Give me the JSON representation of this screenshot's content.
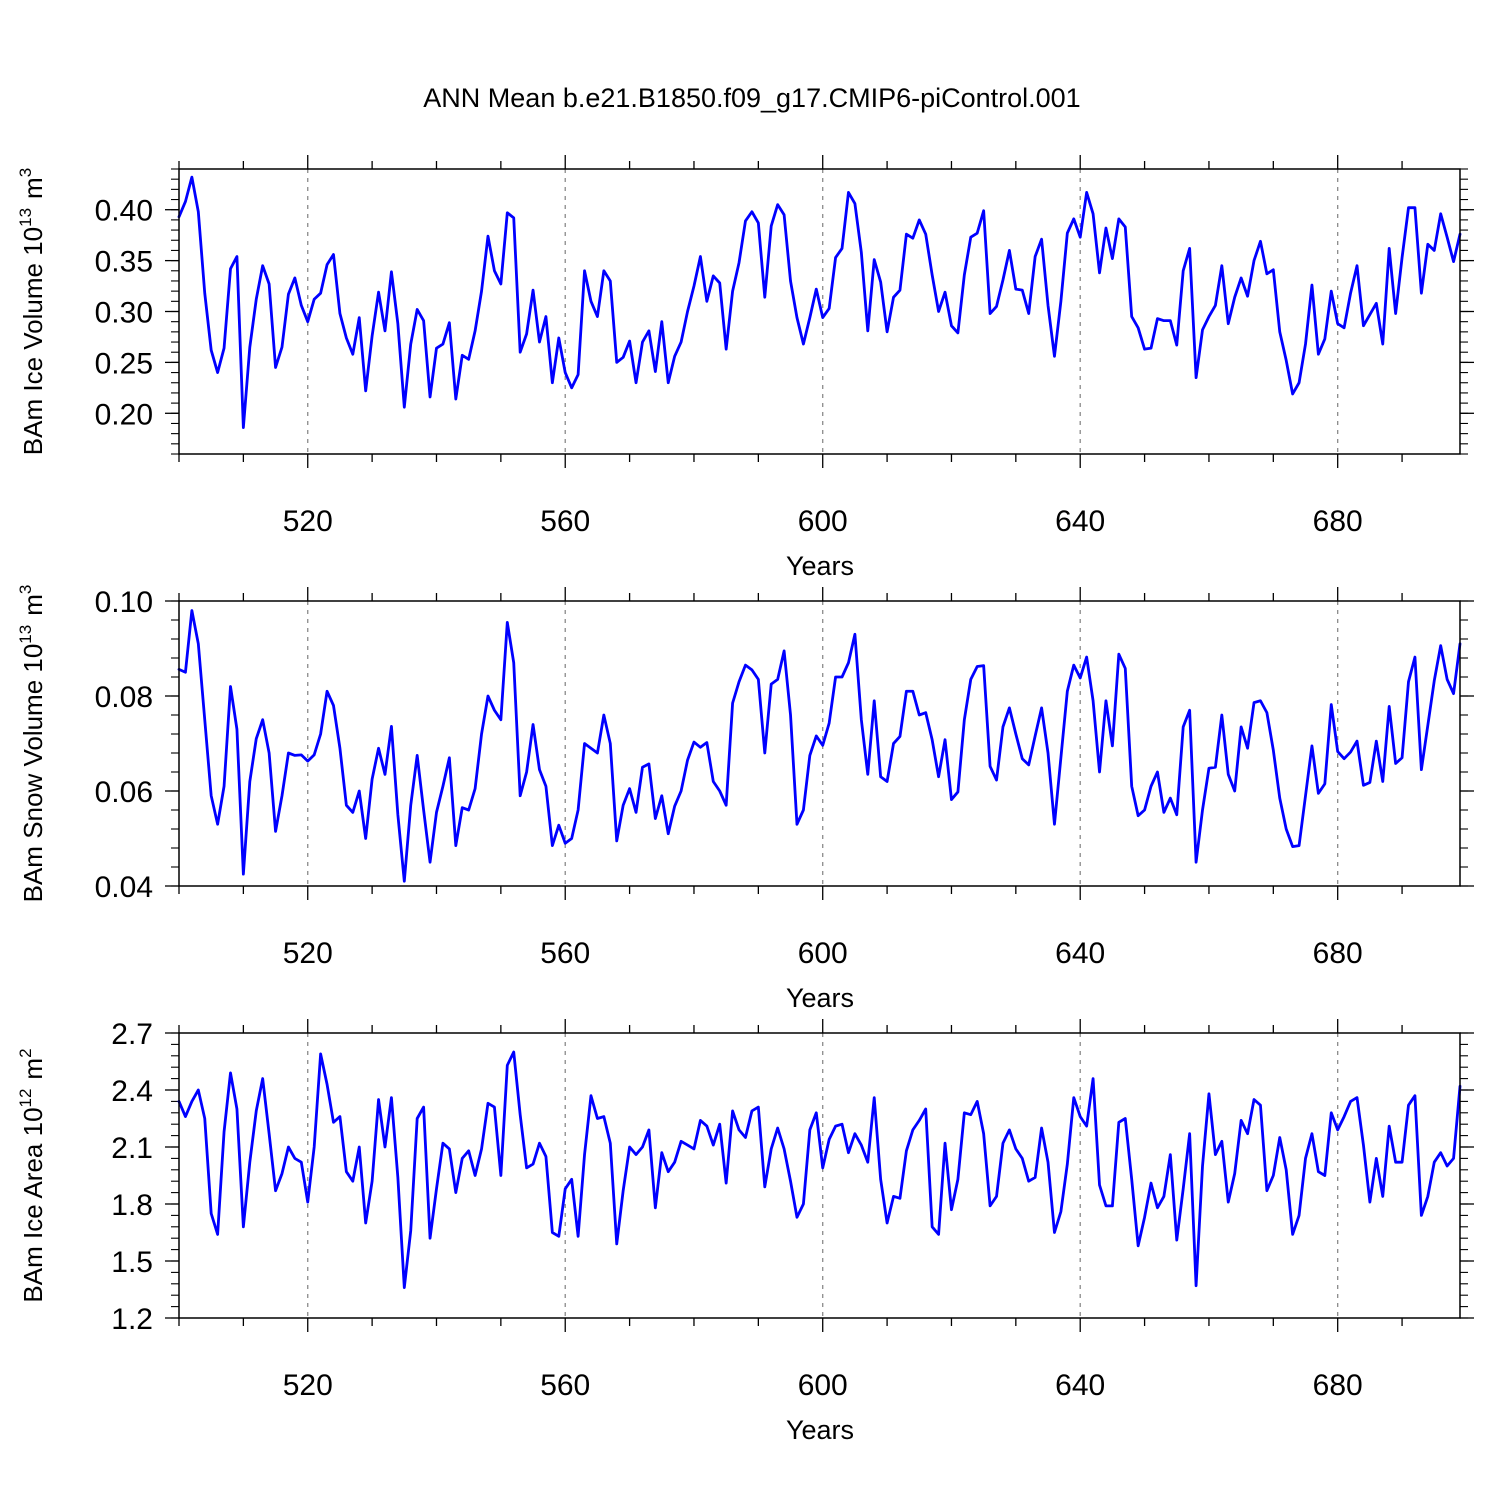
{
  "title": "ANN Mean b.e21.B1850.f09_g17.CMIP6-piControl.001",
  "line_color": "#0000ff",
  "grid_color": "#8a8a8a",
  "chart_data": [
    {
      "type": "line",
      "ylabel": "BAm Ice Volume 10",
      "ylabel_exp": "13",
      "ylabel_unit": "m",
      "ylabel_unit_exp": "3",
      "xlabel": "Years",
      "xlim": [
        500,
        699
      ],
      "ylim": [
        0.16,
        0.44
      ],
      "x_ticks": [
        "520",
        "560",
        "600",
        "640",
        "680"
      ],
      "x_tick_values": [
        520,
        560,
        600,
        640,
        680
      ],
      "y_ticks": [
        "0.20",
        "0.25",
        "0.30",
        "0.35",
        "0.40"
      ],
      "y_tick_values": [
        0.2,
        0.25,
        0.3,
        0.35,
        0.4
      ],
      "y_minor_step": 0.01,
      "grid": "dashed vertical at major x ticks",
      "x_start": 500,
      "x_step": 1,
      "series": [
        {
          "values": [
            0.393,
            0.408,
            0.432,
            0.398,
            0.318,
            0.262,
            0.24,
            0.264,
            0.342,
            0.354,
            0.186,
            0.265,
            0.312,
            0.345,
            0.327,
            0.245,
            0.265,
            0.317,
            0.333,
            0.306,
            0.29,
            0.312,
            0.318,
            0.346,
            0.356,
            0.298,
            0.274,
            0.258,
            0.294,
            0.222,
            0.276,
            0.319,
            0.281,
            0.339,
            0.288,
            0.206,
            0.268,
            0.302,
            0.291,
            0.216,
            0.264,
            0.268,
            0.289,
            0.214,
            0.257,
            0.253,
            0.281,
            0.32,
            0.374,
            0.34,
            0.327,
            0.397,
            0.392,
            0.26,
            0.278,
            0.321,
            0.27,
            0.295,
            0.23,
            0.274,
            0.24,
            0.225,
            0.238,
            0.34,
            0.31,
            0.295,
            0.34,
            0.33,
            0.25,
            0.255,
            0.271,
            0.23,
            0.27,
            0.281,
            0.241,
            0.29,
            0.23,
            0.256,
            0.27,
            0.3,
            0.325,
            0.354,
            0.31,
            0.335,
            0.328,
            0.263,
            0.32,
            0.348,
            0.389,
            0.398,
            0.387,
            0.314,
            0.384,
            0.405,
            0.395,
            0.33,
            0.294,
            0.268,
            0.294,
            0.322,
            0.294,
            0.303,
            0.353,
            0.362,
            0.417,
            0.406,
            0.358,
            0.281,
            0.351,
            0.329,
            0.28,
            0.314,
            0.321,
            0.376,
            0.372,
            0.39,
            0.376,
            0.336,
            0.3,
            0.319,
            0.286,
            0.279,
            0.336,
            0.373,
            0.377,
            0.399,
            0.298,
            0.305,
            0.331,
            0.36,
            0.322,
            0.321,
            0.298,
            0.354,
            0.371,
            0.306,
            0.256,
            0.31,
            0.377,
            0.391,
            0.373,
            0.417,
            0.396,
            0.338,
            0.382,
            0.352,
            0.391,
            0.383,
            0.295,
            0.284,
            0.263,
            0.264,
            0.293,
            0.291,
            0.291,
            0.267,
            0.34,
            0.362,
            0.235,
            0.282,
            0.295,
            0.306,
            0.345,
            0.288,
            0.314,
            0.333,
            0.315,
            0.35,
            0.369,
            0.337,
            0.341,
            0.28,
            0.252,
            0.219,
            0.23,
            0.268,
            0.326,
            0.258,
            0.273,
            0.32,
            0.288,
            0.284,
            0.318,
            0.345,
            0.286,
            0.297,
            0.308,
            0.268,
            0.362,
            0.298,
            0.353,
            0.402,
            0.402,
            0.318,
            0.366,
            0.36,
            0.396,
            0.373,
            0.349,
            0.376
          ]
        }
      ]
    },
    {
      "type": "line",
      "ylabel": "BAm Snow Volume 10",
      "ylabel_exp": "13",
      "ylabel_unit": "m",
      "ylabel_unit_exp": "3",
      "xlabel": "Years",
      "xlim": [
        500,
        699
      ],
      "ylim": [
        0.04,
        0.1
      ],
      "x_ticks": [
        "520",
        "560",
        "600",
        "640",
        "680"
      ],
      "x_tick_values": [
        520,
        560,
        600,
        640,
        680
      ],
      "y_ticks": [
        "0.04",
        "0.06",
        "0.08",
        "0.10"
      ],
      "y_tick_values": [
        0.04,
        0.06,
        0.08,
        0.1
      ],
      "y_minor_step": 0.004,
      "grid": "dashed vertical at major x ticks",
      "x_start": 500,
      "x_step": 1,
      "series": [
        {
          "values": [
            0.0856,
            0.085,
            0.098,
            0.091,
            0.075,
            0.059,
            0.053,
            0.061,
            0.082,
            0.073,
            0.0425,
            0.062,
            0.071,
            0.075,
            0.068,
            0.0515,
            0.059,
            0.068,
            0.0675,
            0.0676,
            0.0663,
            0.0676,
            0.072,
            0.081,
            0.078,
            0.069,
            0.057,
            0.0555,
            0.06,
            0.05,
            0.0625,
            0.069,
            0.0635,
            0.0736,
            0.055,
            0.041,
            0.057,
            0.0675,
            0.056,
            0.045,
            0.0555,
            0.061,
            0.067,
            0.0485,
            0.0565,
            0.056,
            0.0605,
            0.072,
            0.08,
            0.077,
            0.075,
            0.0955,
            0.087,
            0.059,
            0.064,
            0.074,
            0.0645,
            0.061,
            0.0485,
            0.0528,
            0.049,
            0.05,
            0.056,
            0.07,
            0.069,
            0.068,
            0.076,
            0.07,
            0.0495,
            0.057,
            0.0605,
            0.0555,
            0.065,
            0.0657,
            0.0542,
            0.059,
            0.051,
            0.0568,
            0.06,
            0.0665,
            0.0703,
            0.0692,
            0.0702,
            0.062,
            0.06,
            0.057,
            0.0785,
            0.083,
            0.0865,
            0.0855,
            0.0835,
            0.068,
            0.0825,
            0.0835,
            0.0895,
            0.076,
            0.053,
            0.056,
            0.0675,
            0.0716,
            0.0696,
            0.0743,
            0.084,
            0.084,
            0.087,
            0.093,
            0.075,
            0.0635,
            0.079,
            0.063,
            0.062,
            0.07,
            0.0715,
            0.081,
            0.081,
            0.076,
            0.0765,
            0.0708,
            0.063,
            0.0708,
            0.0582,
            0.0598,
            0.075,
            0.0835,
            0.0862,
            0.0864,
            0.0652,
            0.0623,
            0.0735,
            0.0775,
            0.072,
            0.0668,
            0.0655,
            0.0716,
            0.0775,
            0.068,
            0.053,
            0.067,
            0.081,
            0.0865,
            0.0838,
            0.0882,
            0.079,
            0.064,
            0.079,
            0.0695,
            0.0888,
            0.0858,
            0.061,
            0.0548,
            0.056,
            0.061,
            0.064,
            0.0555,
            0.0585,
            0.055,
            0.0735,
            0.077,
            0.045,
            0.056,
            0.0648,
            0.065,
            0.076,
            0.0635,
            0.06,
            0.0735,
            0.069,
            0.0786,
            0.079,
            0.0765,
            0.0686,
            0.0585,
            0.052,
            0.0483,
            0.0485,
            0.059,
            0.0695,
            0.0595,
            0.0615,
            0.0782,
            0.0683,
            0.0668,
            0.0682,
            0.0705,
            0.0612,
            0.0618,
            0.0705,
            0.062,
            0.0778,
            0.0658,
            0.067,
            0.083,
            0.0882,
            0.0645,
            0.0738,
            0.0832,
            0.0906,
            0.0835,
            0.0805,
            0.091
          ]
        }
      ]
    },
    {
      "type": "line",
      "ylabel": "BAm Ice Area 10",
      "ylabel_exp": "12",
      "ylabel_unit": "m",
      "ylabel_unit_exp": "2",
      "xlabel": "Years",
      "xlim": [
        500,
        699
      ],
      "ylim": [
        1.2,
        2.7
      ],
      "x_ticks": [
        "520",
        "560",
        "600",
        "640",
        "680"
      ],
      "x_tick_values": [
        520,
        560,
        600,
        640,
        680
      ],
      "y_ticks": [
        "1.2",
        "1.5",
        "1.8",
        "2.1",
        "2.4",
        "2.7"
      ],
      "y_tick_values": [
        1.2,
        1.5,
        1.8,
        2.1,
        2.4,
        2.7
      ],
      "y_minor_step": 0.06,
      "grid": "dashed vertical at major x ticks",
      "x_start": 500,
      "x_step": 1,
      "series": [
        {
          "values": [
            2.34,
            2.26,
            2.34,
            2.4,
            2.25,
            1.75,
            1.64,
            2.18,
            2.49,
            2.3,
            1.68,
            2.02,
            2.29,
            2.46,
            2.17,
            1.87,
            1.96,
            2.1,
            2.04,
            2.02,
            1.81,
            2.1,
            2.59,
            2.43,
            2.23,
            2.26,
            1.97,
            1.92,
            2.1,
            1.7,
            1.92,
            2.35,
            2.1,
            2.36,
            1.94,
            1.36,
            1.66,
            2.25,
            2.31,
            1.62,
            1.88,
            2.12,
            2.09,
            1.86,
            2.04,
            2.08,
            1.95,
            2.09,
            2.33,
            2.31,
            1.95,
            2.53,
            2.6,
            2.27,
            1.99,
            2.01,
            2.12,
            2.05,
            1.65,
            1.63,
            1.88,
            1.93,
            1.63,
            2.06,
            2.37,
            2.25,
            2.26,
            2.12,
            1.59,
            1.87,
            2.1,
            2.06,
            2.1,
            2.19,
            1.78,
            2.07,
            1.97,
            2.02,
            2.13,
            2.11,
            2.09,
            2.24,
            2.21,
            2.11,
            2.22,
            1.91,
            2.29,
            2.19,
            2.15,
            2.29,
            2.31,
            1.89,
            2.09,
            2.2,
            2.09,
            1.92,
            1.73,
            1.8,
            2.19,
            2.28,
            1.99,
            2.14,
            2.21,
            2.22,
            2.07,
            2.17,
            2.11,
            2.02,
            2.36,
            1.93,
            1.7,
            1.84,
            1.83,
            2.08,
            2.19,
            2.24,
            2.3,
            1.68,
            1.64,
            2.12,
            1.77,
            1.93,
            2.28,
            2.27,
            2.34,
            2.17,
            1.79,
            1.84,
            2.12,
            2.19,
            2.09,
            2.04,
            1.92,
            1.94,
            2.2,
            2.02,
            1.65,
            1.76,
            2.01,
            2.36,
            2.26,
            2.21,
            2.46,
            1.9,
            1.79,
            1.79,
            2.23,
            2.25,
            1.93,
            1.58,
            1.73,
            1.91,
            1.78,
            1.84,
            2.06,
            1.61,
            1.88,
            2.17,
            1.37,
            2.0,
            2.38,
            2.06,
            2.13,
            1.81,
            1.96,
            2.24,
            2.17,
            2.35,
            2.32,
            1.87,
            1.95,
            2.15,
            1.98,
            1.64,
            1.74,
            2.04,
            2.17,
            1.97,
            1.95,
            2.28,
            2.19,
            2.26,
            2.34,
            2.36,
            2.11,
            1.81,
            2.04,
            1.84,
            2.21,
            2.02,
            2.02,
            2.32,
            2.37,
            1.74,
            1.84,
            2.02,
            2.07,
            2.0,
            2.04,
            2.42
          ]
        }
      ]
    }
  ]
}
